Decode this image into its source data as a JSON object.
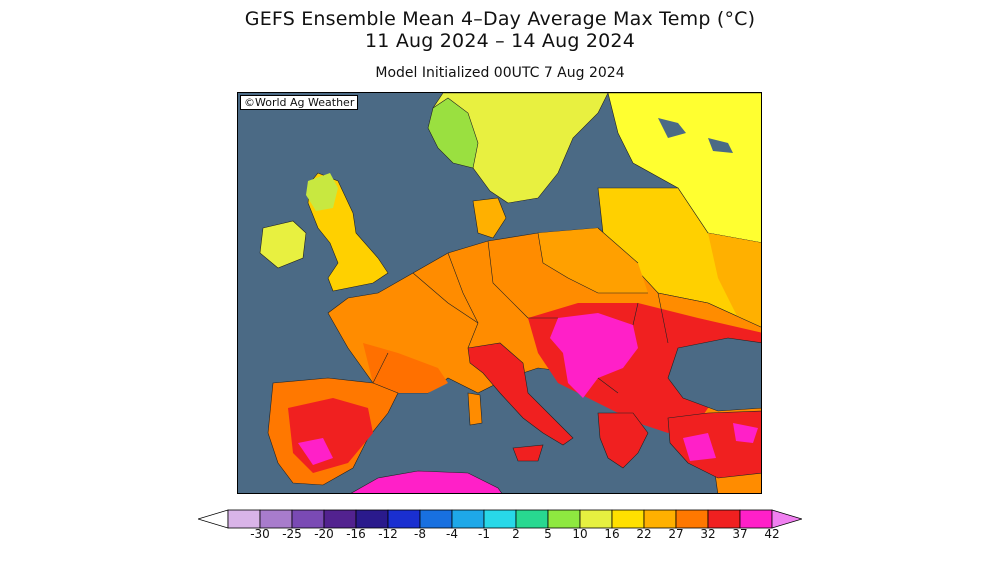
{
  "title": {
    "line1": "GEFS Ensemble Mean 4–Day Average Max Temp (°C)",
    "line2": "11 Aug 2024 – 14 Aug 2024",
    "subtitle": "Model Initialized 00UTC 7 Aug 2024"
  },
  "map": {
    "copyright": "©World Ag Weather",
    "region": "Europe",
    "sea_color": "#4b6a85"
  },
  "legend": {
    "ticks": [
      "-30",
      "-25",
      "-20",
      "-16",
      "-12",
      "-8",
      "-4",
      "-1",
      "2",
      "5",
      "10",
      "16",
      "22",
      "27",
      "32",
      "37",
      "42"
    ],
    "colors": [
      "#ffffff",
      "#d9b4e8",
      "#a87ccc",
      "#7a4ab4",
      "#52228f",
      "#2a1a8c",
      "#1a2fd0",
      "#1870e0",
      "#1ea8e8",
      "#28d8e8",
      "#28d890",
      "#8ee840",
      "#e6f040",
      "#ffe000",
      "#ffb000",
      "#ff7800",
      "#f02020",
      "#ff20c8",
      "#f080f0"
    ]
  }
}
